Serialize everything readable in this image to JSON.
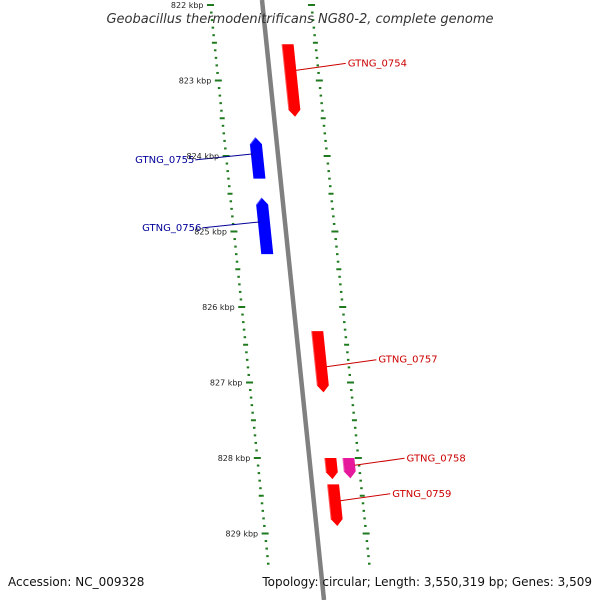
{
  "title": "Geobacillus thermodenitrificans NG80-2, complete genome",
  "footer": {
    "accession": "Accession: NC_009328",
    "summary": "Topology: circular; Length: 3,550,319 bp; Genes: 3,509"
  },
  "colors": {
    "backbone": "#808080",
    "ticks": "#1f7a1f",
    "forward_gene": "#ff0000",
    "reverse_gene": "#0000ff",
    "other_gene": "#e6199c",
    "forward_label": "#cc0000",
    "reverse_label": "#000099"
  },
  "ruler": [
    {
      "label": "822 kbp",
      "kbp": 822
    },
    {
      "label": "823 kbp",
      "kbp": 823
    },
    {
      "label": "824 kbp",
      "kbp": 824
    },
    {
      "label": "825 kbp",
      "kbp": 825
    },
    {
      "label": "826 kbp",
      "kbp": 826
    },
    {
      "label": "827 kbp",
      "kbp": 827
    },
    {
      "label": "828 kbp",
      "kbp": 828
    },
    {
      "label": "829 kbp",
      "kbp": 829
    }
  ],
  "genes": [
    {
      "name": "GTNG_0754",
      "strand": "forward",
      "color_key": "forward_gene",
      "start_kbp": 822.52,
      "end_kbp": 823.48
    },
    {
      "name": "GTNG_0755",
      "strand": "reverse",
      "color_key": "reverse_gene",
      "start_kbp": 823.75,
      "end_kbp": 824.3
    },
    {
      "name": "GTNG_0756",
      "strand": "reverse",
      "color_key": "reverse_gene",
      "start_kbp": 824.55,
      "end_kbp": 825.3
    },
    {
      "name": "GTNG_0757",
      "strand": "forward",
      "color_key": "forward_gene",
      "start_kbp": 826.32,
      "end_kbp": 827.13
    },
    {
      "name": "GTNG_0758",
      "strand": "forward",
      "color_key": "forward_gene",
      "start_kbp": 828.0,
      "end_kbp": 828.28
    },
    {
      "name": "GTNG_0759",
      "strand": "forward",
      "color_key": "forward_gene",
      "start_kbp": 828.35,
      "end_kbp": 828.9
    }
  ],
  "extra_features": [
    {
      "strand": "forward",
      "color_key": "other_gene",
      "start_kbp": 828.0,
      "end_kbp": 828.27
    }
  ]
}
